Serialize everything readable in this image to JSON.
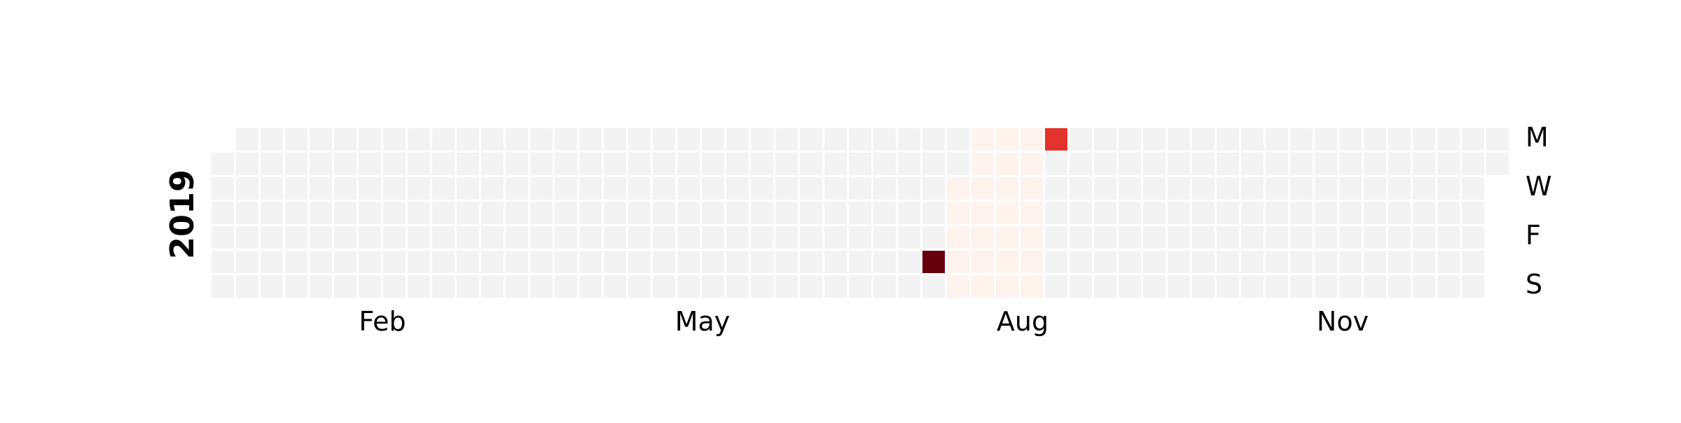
{
  "chart_data": {
    "type": "heatmap",
    "title": "",
    "year_label": "2019",
    "start_date": "2019-01-01",
    "end_date": "2019-12-31",
    "x_tick_labels": [
      "Feb",
      "May",
      "Aug",
      "Nov"
    ],
    "y_tick_labels": [
      "M",
      "W",
      "F",
      "S"
    ],
    "colors": {
      "empty": "#f3f3f3",
      "pale": "#fff3ee",
      "mid": "#e3342b",
      "max": "#67000d",
      "gap": "#ffffff"
    },
    "pale_range": {
      "start": "2019-07-31",
      "end": "2019-08-25"
    },
    "pale_value": 1,
    "values": [
      {
        "date": "2019-07-27",
        "value": 100
      },
      {
        "date": "2019-08-26",
        "value": 60
      }
    ],
    "value_range": [
      0,
      100
    ],
    "grid": false,
    "legend": "none"
  }
}
